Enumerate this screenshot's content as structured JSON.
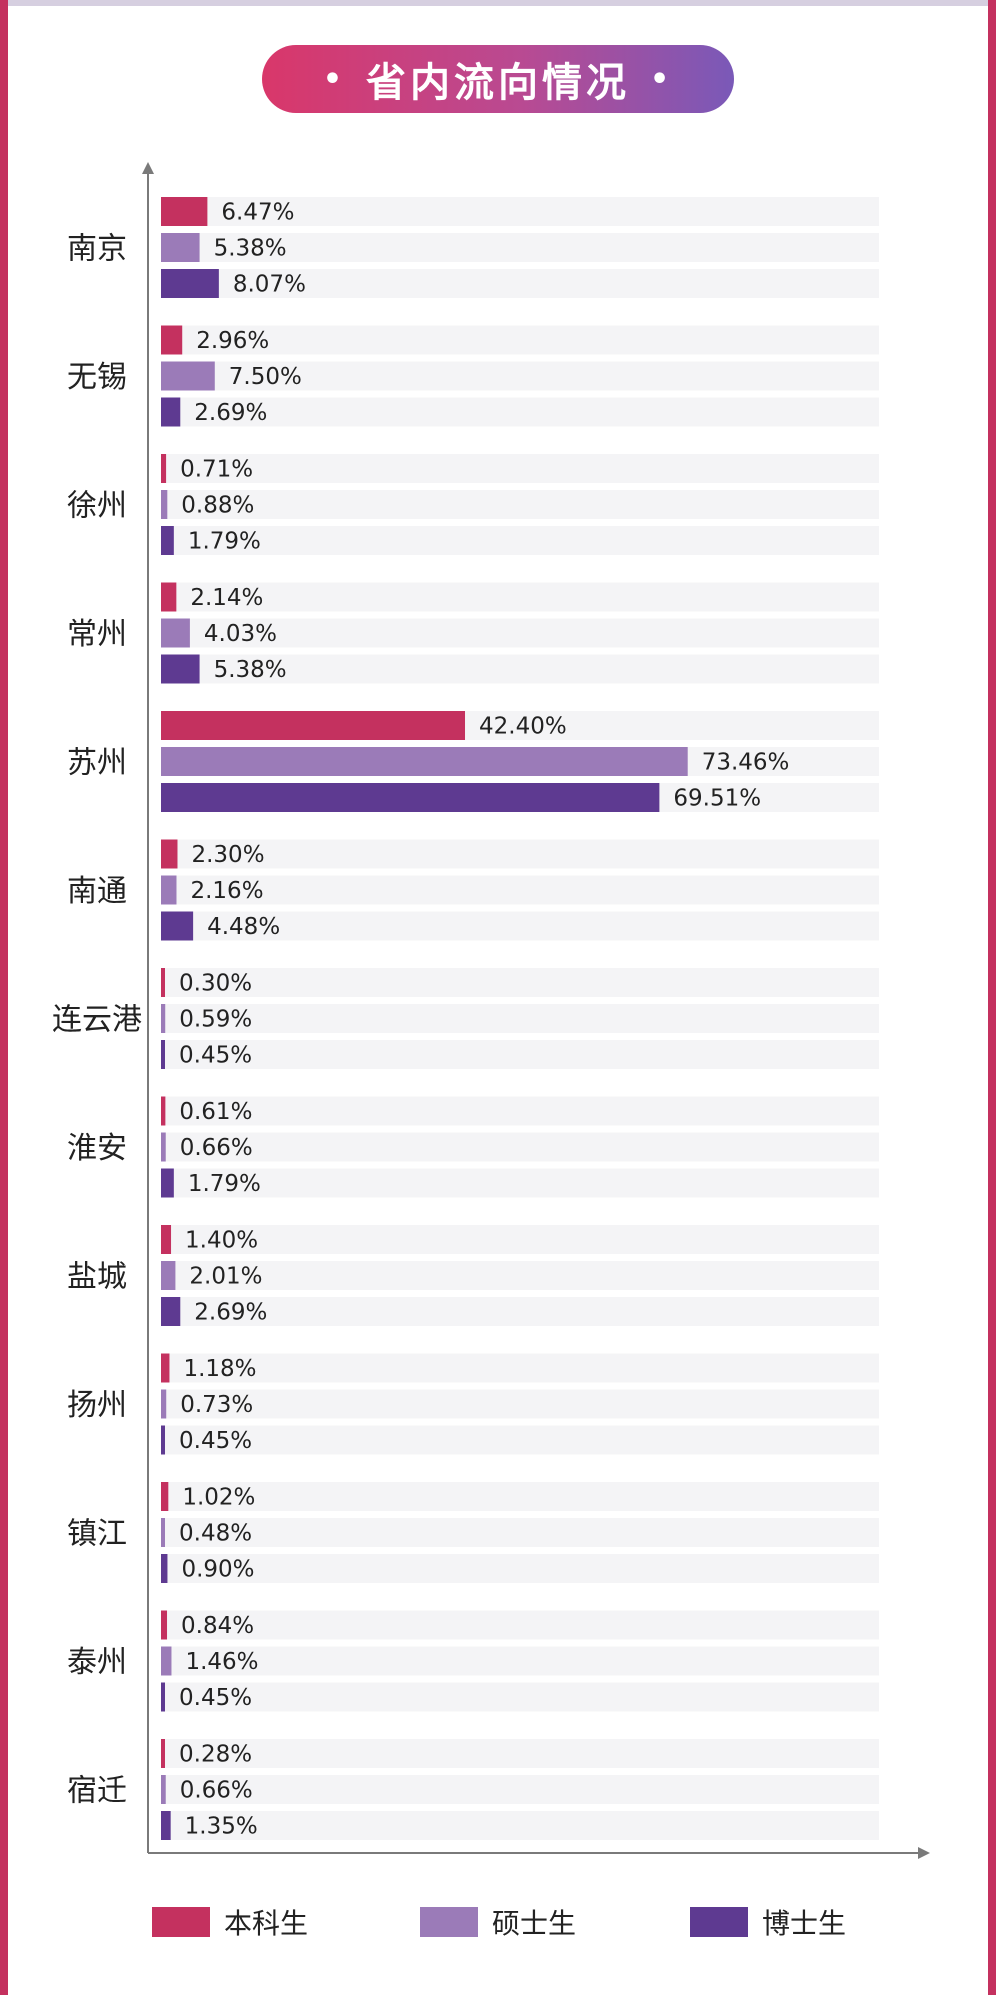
{
  "title": "省内流向情况",
  "chart_data": {
    "type": "bar",
    "orientation": "horizontal",
    "title": "省内流向情况",
    "xlabel": "",
    "ylabel": "",
    "xlim": [
      0,
      100
    ],
    "categories": [
      "南京",
      "无锡",
      "徐州",
      "常州",
      "苏州",
      "南通",
      "连云港",
      "淮安",
      "盐城",
      "扬州",
      "镇江",
      "泰州",
      "宿迁"
    ],
    "series": [
      {
        "name": "本科生",
        "color": "#c4315f",
        "values": [
          6.47,
          2.96,
          0.71,
          2.14,
          42.4,
          2.3,
          0.3,
          0.61,
          1.4,
          1.18,
          1.02,
          0.84,
          0.28
        ]
      },
      {
        "name": "硕士生",
        "color": "#9b7bb8",
        "values": [
          5.38,
          7.5,
          0.88,
          4.03,
          73.46,
          2.16,
          0.59,
          0.66,
          2.01,
          0.73,
          0.48,
          1.46,
          0.66
        ]
      },
      {
        "name": "博士生",
        "color": "#5e3a91",
        "values": [
          8.07,
          2.69,
          1.79,
          5.38,
          69.51,
          4.48,
          0.45,
          1.79,
          2.69,
          0.45,
          0.9,
          0.45,
          1.35
        ]
      }
    ],
    "value_suffix": "%",
    "legend_position": "bottom"
  }
}
